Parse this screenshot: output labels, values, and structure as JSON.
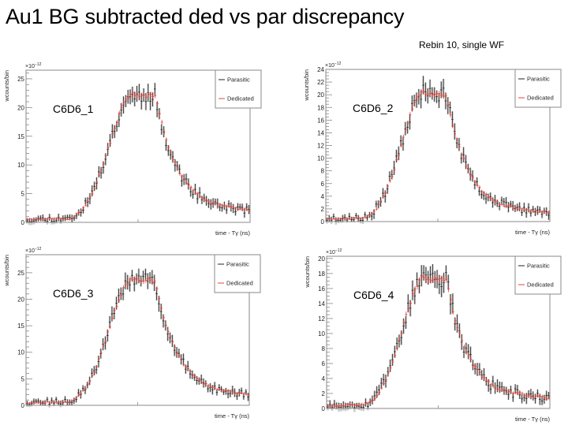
{
  "page": {
    "title": "Au1 BG subtracted ded vs par discrepancy",
    "subtitle": "Rebin 10, single WF"
  },
  "colors": {
    "parasitic": "#222222",
    "parasitic_band": "#b0b0b0",
    "dedicated": "#e8433a",
    "frame": "#888888"
  },
  "chart_data": [
    {
      "type": "scatter",
      "name": "C6D6_1",
      "label": "C6D6_1",
      "ylabel": "wcounts/bin",
      "xlabel": "time - Tγ (ns)",
      "y_exponent": "×10",
      "y_exponent_power": "−12",
      "ylim": [
        0,
        26.5
      ],
      "yticks": [
        0,
        5,
        10,
        15,
        20,
        25
      ],
      "yticks_labels": [
        "0",
        "5",
        "10",
        "15",
        "20",
        "25"
      ],
      "legend": [
        "Parasitic",
        "Dedicated"
      ],
      "legend_position": "top-right",
      "peak": 22.5,
      "peak_pos": 0.52,
      "rise": 0.16,
      "fall": 0.17,
      "tail": 1.6,
      "base": 0.5,
      "seed": 11
    },
    {
      "type": "scatter",
      "name": "C6D6_2",
      "label": "C6D6_2",
      "ylabel": "wcounts/bin",
      "xlabel": "time - Tγ (ns)",
      "y_exponent": "×10",
      "y_exponent_power": "−12",
      "ylim": [
        0,
        24
      ],
      "yticks": [
        0,
        2,
        4,
        6,
        8,
        10,
        12,
        14,
        16,
        18,
        20,
        22,
        24
      ],
      "yticks_labels": [
        "0",
        "2",
        "4",
        "6",
        "8",
        "10",
        "12",
        "14",
        "16",
        "18",
        "20",
        "22",
        "24"
      ],
      "legend": [
        "Parasitic",
        "Dedicated"
      ],
      "legend_position": "top-right",
      "peak": 20.5,
      "peak_pos": 0.48,
      "rise": 0.15,
      "fall": 0.16,
      "tail": 1.2,
      "base": 0.4,
      "seed": 23
    },
    {
      "type": "scatter",
      "name": "C6D6_3",
      "label": "C6D6_3",
      "ylabel": "wcounts/bin",
      "xlabel": "time - Tγ (ns)",
      "y_exponent": "×10",
      "y_exponent_power": "−12",
      "ylim": [
        0,
        28.4
      ],
      "yticks": [
        0,
        5,
        10,
        15,
        20,
        25
      ],
      "yticks_labels": [
        "0",
        "5",
        "10",
        "15",
        "20",
        "25"
      ],
      "legend": [
        "Parasitic",
        "Dedicated"
      ],
      "legend_position": "top-right",
      "peak": 24,
      "peak_pos": 0.52,
      "rise": 0.16,
      "fall": 0.17,
      "tail": 1.5,
      "base": 0.5,
      "seed": 37
    },
    {
      "type": "scatter",
      "name": "C6D6_4",
      "label": "C6D6_4",
      "ylabel": "wcounts/bin",
      "xlabel": "time - Tγ (ns)",
      "y_exponent": "×10",
      "y_exponent_power": "−12",
      "ylim": [
        0,
        20.3
      ],
      "yticks": [
        0,
        2,
        4,
        6,
        8,
        10,
        12,
        14,
        16,
        18,
        20
      ],
      "yticks_labels": [
        "0",
        "2",
        "4",
        "6",
        "8",
        "10",
        "12",
        "14",
        "16",
        "18",
        "20"
      ],
      "legend": [
        "Parasitic",
        "Dedicated"
      ],
      "legend_position": "top-right",
      "peak": 17.5,
      "peak_pos": 0.48,
      "rise": 0.15,
      "fall": 0.16,
      "tail": 1.2,
      "base": 0.4,
      "seed": 53
    }
  ]
}
